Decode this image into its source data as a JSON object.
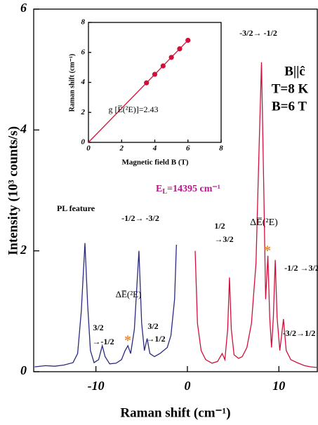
{
  "chart_data": [
    {
      "type": "line",
      "x_label": "Raman shift (cm⁻¹)",
      "y_label": "Intensity (10³ counts/s)",
      "xlim": [
        -16.8,
        14.2
      ],
      "ylim": [
        0,
        6
      ],
      "xticks": [
        -10,
        0,
        10
      ],
      "yticks": [
        0,
        2,
        4,
        6
      ],
      "series": [
        {
          "color": "#2b2a7e",
          "x": [
            -16.7,
            -15.5,
            -14.5,
            -13.5,
            -12.5,
            -12,
            -11.6,
            -11.2,
            -10.9,
            -10.6,
            -10.2,
            -9.7,
            -9.3,
            -9.0,
            -8.5,
            -7.8,
            -7.2,
            -6.8,
            -6.5,
            -6.2,
            -5.8,
            -5.3,
            -5.0,
            -4.7,
            -4.4,
            -4.1,
            -3.6,
            -3.0,
            -2.2,
            -1.8,
            -1.4,
            -1.2
          ],
          "values": [
            0.08,
            0.1,
            0.09,
            0.11,
            0.15,
            0.3,
            1.0,
            2.13,
            1.1,
            0.35,
            0.15,
            0.2,
            0.43,
            0.25,
            0.13,
            0.14,
            0.2,
            0.35,
            0.43,
            0.3,
            0.7,
            2.0,
            0.8,
            0.35,
            0.55,
            0.3,
            0.25,
            0.3,
            0.4,
            0.6,
            1.2,
            2.1
          ]
        },
        {
          "color": "#d0103a",
          "x": [
            0.85,
            1.1,
            1.5,
            2.0,
            2.7,
            3.3,
            3.8,
            4.1,
            4.4,
            4.6,
            4.8,
            5.1,
            5.6,
            6.0,
            6.5,
            7.0,
            7.5,
            7.8,
            8.1,
            8.35,
            8.55,
            8.8,
            9.0,
            9.2,
            9.4,
            9.6,
            9.8,
            10.1,
            10.5,
            10.8,
            11.3,
            12.0,
            12.8,
            13.5,
            14.2
          ],
          "values": [
            2.0,
            0.8,
            0.35,
            0.2,
            0.14,
            0.17,
            0.3,
            0.2,
            0.7,
            1.56,
            0.7,
            0.28,
            0.22,
            0.25,
            0.4,
            0.8,
            1.8,
            3.5,
            5.12,
            3.0,
            1.2,
            1.92,
            0.9,
            0.4,
            0.9,
            1.85,
            0.9,
            0.35,
            0.87,
            0.35,
            0.2,
            0.15,
            0.1,
            0.08,
            0.07
          ]
        }
      ],
      "laser_label": {
        "main": "E",
        "sub": "L",
        "rest": "=14395 cm⁻¹"
      },
      "annotations": [
        {
          "text": "-3/2→ -1/2"
        },
        {
          "text": "B||ĉ"
        },
        {
          "text": "T=8 K"
        },
        {
          "text": "B=6 T"
        },
        {
          "text": "PL feature"
        },
        {
          "text": "-1/2→ -3/2"
        },
        {
          "lines": [
            "3/2",
            "→-1/2"
          ]
        },
        {
          "text": "ΔE̅(²E)"
        },
        {
          "lines": [
            "3/2",
            "→1/2"
          ]
        },
        {
          "lines": [
            "1/2",
            "→3/2"
          ]
        },
        {
          "text": "ΔE̅(²E)"
        },
        {
          "text": "-1/2 →3/2"
        },
        {
          "text": "-3/2→1/2"
        },
        {
          "text": "*"
        },
        {
          "text": "*"
        }
      ]
    },
    {
      "type": "line",
      "x_label": "Magnetic field B (T)",
      "y_label": "Raman shift (cm⁻¹)",
      "xlim": [
        0,
        8
      ],
      "ylim": [
        0,
        8
      ],
      "xticks": [
        0,
        2,
        4,
        6,
        8
      ],
      "yticks": [
        0,
        2,
        4,
        6,
        8
      ],
      "series": [
        {
          "color": "#d0103a",
          "x": [
            0,
            6
          ],
          "values": [
            0,
            6.81
          ]
        },
        {
          "color": "#d0103a",
          "marker": true,
          "x": [
            3.5,
            4,
            4.5,
            5,
            5.5,
            6
          ],
          "values": [
            3.97,
            4.54,
            5.1,
            5.67,
            6.24,
            6.81
          ]
        }
      ],
      "annotations": [
        {
          "text": "g [E̅(²E)]=2.43"
        }
      ]
    }
  ]
}
